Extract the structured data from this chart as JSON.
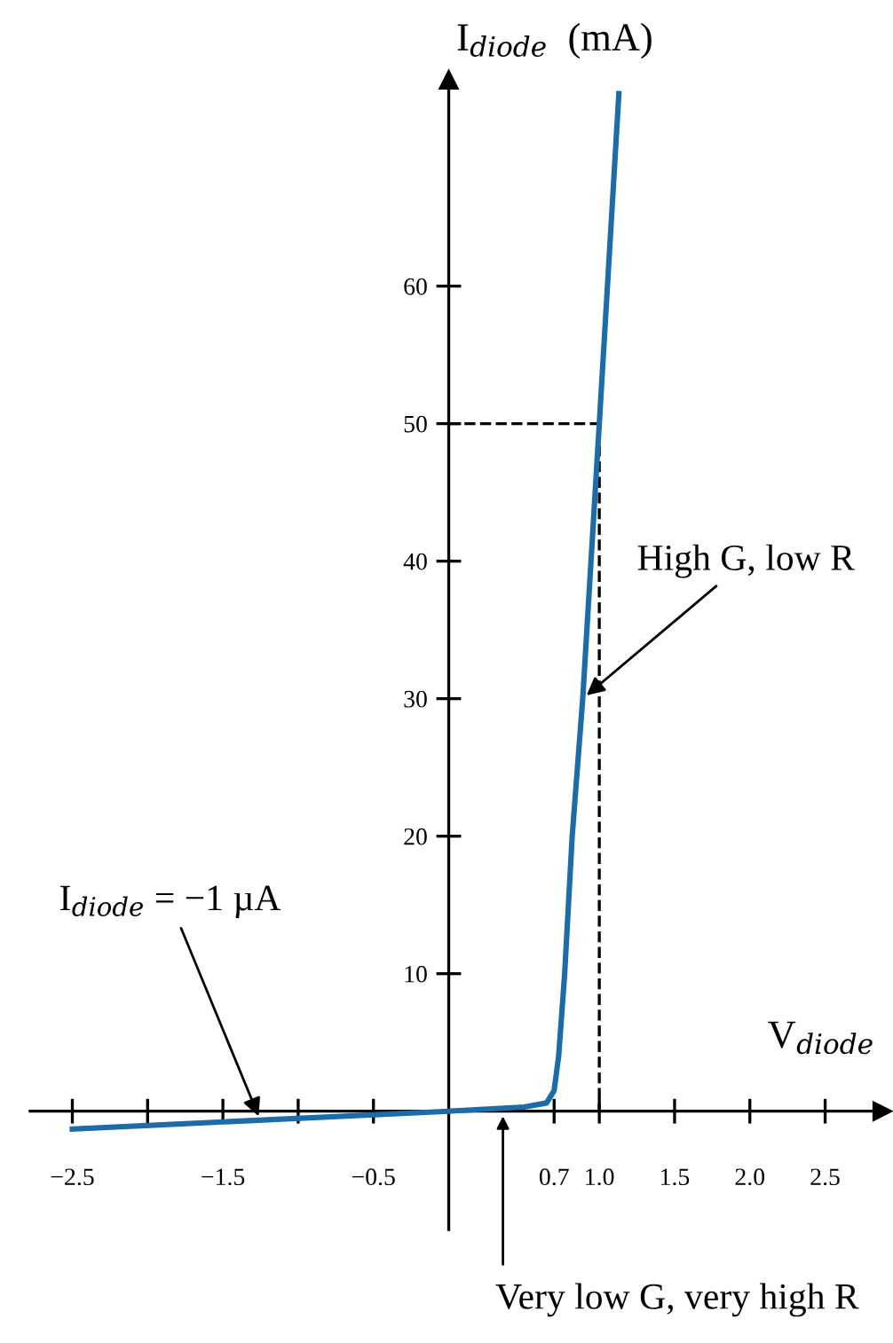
{
  "chart_data": {
    "type": "line",
    "xlabel": "V$_{diode}$",
    "ylabel": "I$_{diode}$  (mA)",
    "series": [
      {
        "color": "#1b6ca8",
        "x": [
          -2.5,
          0,
          0.5,
          0.65,
          0.7,
          0.73,
          0.77,
          0.82,
          0.89,
          1.0,
          1.13
        ],
        "values": [
          -1.3,
          0,
          0.3,
          0.6,
          1.5,
          4,
          10,
          20,
          30,
          50,
          74
        ]
      },
      {
        "color": "#000000",
        "line_style": "dashed",
        "x": [
          0,
          1.0,
          1.0
        ],
        "values": [
          50,
          50,
          0
        ]
      }
    ],
    "xlim": [
      -2.78,
      2.88
    ],
    "ylim": [
      -8.6,
      75
    ],
    "xticks": [
      {
        "value": -2.5,
        "label": "−2.5"
      },
      {
        "value": -2.0,
        "label": null
      },
      {
        "value": -1.5,
        "label": "−1.5"
      },
      {
        "value": -1.0,
        "label": null
      },
      {
        "value": -0.5,
        "label": "−0.5"
      },
      0.7,
      {
        "value": 1.0,
        "label": "1.0"
      },
      1.5,
      {
        "value": 2.0,
        "label": "2.0"
      },
      2.5
    ],
    "yticks": [
      10,
      20,
      30,
      40,
      50,
      60
    ],
    "grid": false,
    "legend": false,
    "marker": "none",
    "line_style": "solid",
    "annotations": [
      {
        "text": "I$_{diode}$ = −1 µA",
        "x": -1.25,
        "y": -0.7
      },
      {
        "text": "High G, low R",
        "x": 0.89,
        "y": 30
      },
      {
        "text": "Very low G, very high R",
        "x": 0.36,
        "y": 0
      }
    ]
  }
}
